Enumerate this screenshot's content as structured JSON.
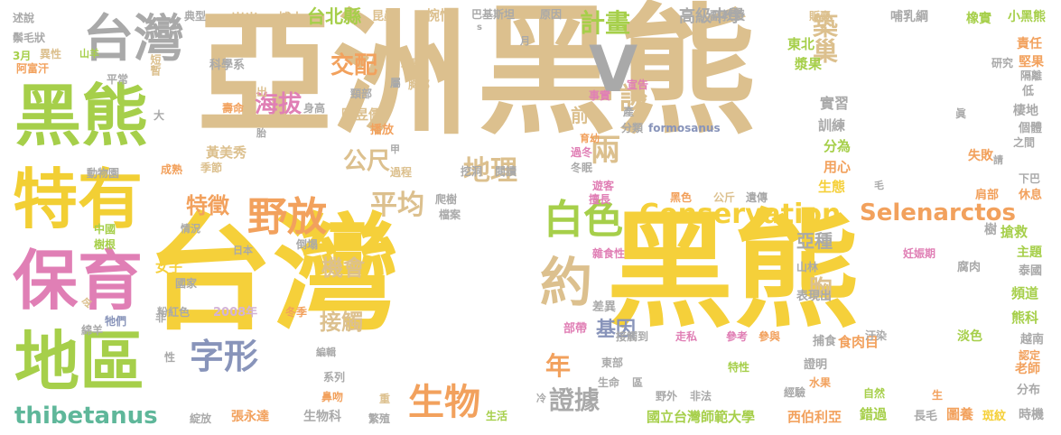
{
  "words": [
    "黑熊",
    "台灣",
    "黑熊",
    "亞洲",
    "黑熊",
    "台灣",
    "黑熊",
    "特有",
    "保育",
    "地區",
    "台灣",
    "V",
    "約",
    "白色",
    "野放",
    "計畫",
    "築巢",
    "談",
    "兩",
    "Conservation",
    "Selenarctos",
    "thibetanus",
    "字形",
    "生物",
    "證據",
    "年",
    "胸",
    "接觸",
    "機會",
    "基因",
    "地理",
    "平均",
    "特徵",
    "海拔",
    "交配",
    "台北縣",
    "高級中學",
    "公尺",
    "前",
    "亞種",
    "東北",
    "漿果",
    "實習",
    "訓練",
    "分為",
    "用心",
    "生態",
    "搶救",
    "主題",
    "頻道",
    "熊科",
    "淡色",
    "越南",
    "責任",
    "堅果",
    "棲地",
    "個體",
    "失敗",
    "休息",
    "肩部",
    "樹",
    "泰國",
    "認定",
    "時機",
    "分布",
    "老師",
    "錯過",
    "長毛",
    "圖養",
    "斑紋",
    "國立台灣師範大學",
    "西伯利亞",
    "食肉目",
    "捕食",
    "參與",
    "參考",
    "走私",
    "接觸到",
    "差異",
    "部帶",
    "雜食性",
    "妊娠期",
    "腐肉",
    "山林",
    "遺傳",
    "公斤",
    "黑色",
    "擅長",
    "遊客",
    "冬眠",
    "過冬",
    "育幼",
    "分類",
    "formosanus",
    "事實",
    "宣告",
    "副教授",
    "販賣",
    "哺乳綱",
    "橡實",
    "小黑熊",
    "崇光",
    "典型",
    "博士",
    "昆蟲",
    "惋惜",
    "巴基斯坦",
    "原因",
    "述說",
    "鬃毛狀",
    "3月",
    "阿富汗",
    "異性",
    "山羊",
    "短暫",
    "平常",
    "科學系",
    "提出",
    "頸部",
    "胸部",
    "屬",
    "蜂蜜",
    "壽命",
    "身高",
    "陳昱儒",
    "播放",
    "胎",
    "黃美秀",
    "季節",
    "動物園",
    "成熟",
    "過程",
    "挖洞",
    "閱讀",
    "爬樹",
    "檔案",
    "中國",
    "樹根",
    "情況",
    "倒塌",
    "日本",
    "女子",
    "國家",
    "粉紅色",
    "2008年",
    "冬季",
    "非",
    "令",
    "綿羊",
    "牠們",
    "性",
    "系列",
    "編輯",
    "鼻吻",
    "綻放",
    "張永達",
    "生物科",
    "繁殖",
    "重",
    "冷",
    "生活",
    "區",
    "生命",
    "東部",
    "野外",
    "非法",
    "特性",
    "經驗",
    "水果",
    "證明",
    "汙染",
    "自然",
    "生",
    "下巴",
    "之間",
    "毛",
    "低",
    "隔離",
    "研究",
    "請",
    "眞",
    "產",
    "月",
    "s",
    "表現出",
    "大",
    "甲"
  ],
  "colors": {
    "gold": "#f5d03a",
    "tan": "#dcc08e",
    "green": "#a6cf4a",
    "grey": "#a9a9a9",
    "pink": "#e07fb5",
    "orange": "#f2a15d",
    "slate": "#8894ba",
    "teal": "#5fb79a",
    "olive": "#c6d36b",
    "lilac": "#d3b3d6",
    "coral": "#ee9480",
    "yellow": "#f2cf34",
    "rose": "#e57a9b",
    "lgrey": "#b9b9b9"
  }
}
